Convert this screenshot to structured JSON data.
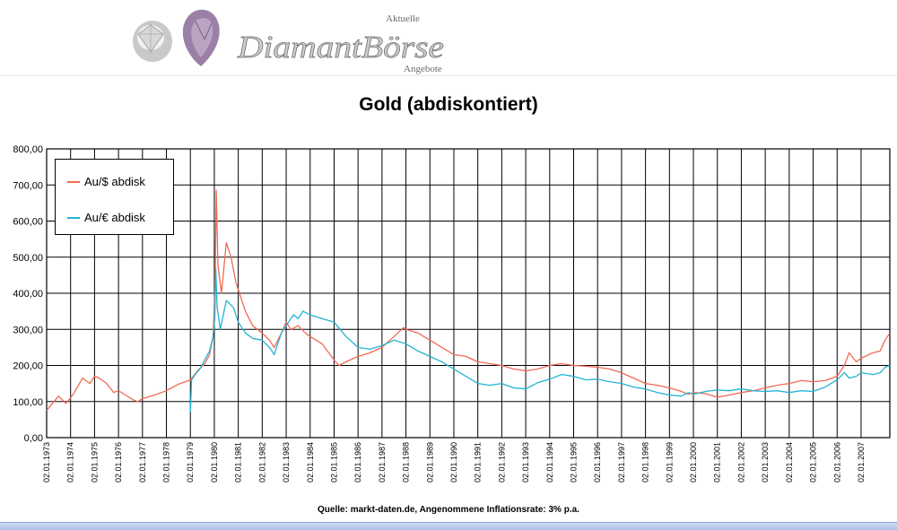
{
  "logo": {
    "brand": "DiamantBörse",
    "top_word": "Aktuelle",
    "bottom_word": "Angebote",
    "gem_icons": [
      "round-diamond-icon",
      "purple-pear-diamond-icon"
    ]
  },
  "colors": {
    "usd_series": "#f06a55",
    "eur_series": "#22b4d4",
    "grid": "#000000"
  },
  "chart_data": {
    "type": "line",
    "title": "Gold (abdiskontiert)",
    "xlabel": "",
    "ylabel": "",
    "ylim": [
      0,
      800
    ],
    "ytick_labels": [
      "0,00",
      "100,00",
      "200,00",
      "300,00",
      "400,00",
      "500,00",
      "600,00",
      "700,00",
      "800,00"
    ],
    "xtick_labels": [
      "02.01.1973",
      "02.01.1974",
      "02.01.1975",
      "02.01.1976",
      "02.01.1977",
      "02.01.1978",
      "02.01.1979",
      "02.01.1980",
      "02.01.1981",
      "02.01.1982",
      "02.01.1983",
      "02.01.1984",
      "02.01.1985",
      "02.01.1986",
      "02.01.1987",
      "02.01.1988",
      "02.01.1989",
      "02.01.1990",
      "02.01.1991",
      "02.01.1992",
      "02.01.1993",
      "02.01.1994",
      "02.01.1995",
      "02.01.1996",
      "02.01.1997",
      "02.01.1998",
      "02.01.1999",
      "02.01.2000",
      "02.01.2001",
      "02.01.2002",
      "02.01.2003",
      "02.01.2004",
      "02.01.2005",
      "02.01.2006",
      "02.01.2007"
    ],
    "xrange": [
      1973.0,
      2008.2
    ],
    "grid": true,
    "legend_position": "top-left",
    "series": [
      {
        "name": "Au/$ abdisk",
        "x": [
          1973.0,
          1973.3,
          1973.5,
          1973.8,
          1974.0,
          1974.2,
          1974.5,
          1974.8,
          1975.0,
          1975.2,
          1975.5,
          1975.8,
          1976.0,
          1976.3,
          1976.6,
          1976.8,
          1977.0,
          1977.5,
          1978.0,
          1978.5,
          1979.0,
          1979.3,
          1979.6,
          1979.8,
          1979.95,
          1980.03,
          1980.08,
          1980.15,
          1980.3,
          1980.5,
          1980.7,
          1980.9,
          1981.0,
          1981.3,
          1981.6,
          1982.0,
          1982.3,
          1982.5,
          1982.8,
          1983.0,
          1983.2,
          1983.5,
          1983.8,
          1984.0,
          1984.5,
          1985.0,
          1985.2,
          1985.5,
          1986.0,
          1986.5,
          1987.0,
          1987.5,
          1987.9,
          1988.0,
          1988.5,
          1989.0,
          1989.5,
          1990.0,
          1990.5,
          1991.0,
          1991.5,
          1992.0,
          1992.5,
          1993.0,
          1993.5,
          1994.0,
          1994.5,
          1995.0,
          1995.5,
          1996.0,
          1996.5,
          1997.0,
          1997.5,
          1998.0,
          1998.5,
          1999.0,
          1999.5,
          1999.8,
          2000.0,
          2000.5,
          2001.0,
          2001.5,
          2002.0,
          2002.5,
          2003.0,
          2003.5,
          2004.0,
          2004.5,
          2005.0,
          2005.5,
          2006.0,
          2006.3,
          2006.5,
          2006.8,
          2007.0,
          2007.5,
          2007.8,
          2008.0,
          2008.2
        ],
        "values": [
          75,
          100,
          115,
          95,
          110,
          130,
          165,
          150,
          170,
          165,
          150,
          125,
          130,
          118,
          105,
          100,
          108,
          118,
          130,
          148,
          160,
          185,
          205,
          230,
          280,
          420,
          685,
          480,
          400,
          540,
          500,
          430,
          410,
          350,
          310,
          290,
          270,
          250,
          290,
          320,
          300,
          310,
          290,
          280,
          260,
          215,
          200,
          210,
          225,
          235,
          250,
          280,
          305,
          300,
          290,
          270,
          250,
          230,
          225,
          210,
          205,
          200,
          190,
          185,
          190,
          200,
          205,
          200,
          198,
          195,
          190,
          180,
          165,
          150,
          145,
          138,
          128,
          120,
          125,
          122,
          112,
          118,
          125,
          130,
          138,
          145,
          150,
          158,
          155,
          158,
          170,
          200,
          235,
          210,
          220,
          235,
          240,
          270,
          290
        ]
      },
      {
        "name": "Au/€ abdisk",
        "x": [
          1979.0,
          1979.05,
          1979.2,
          1979.4,
          1979.6,
          1979.8,
          1979.95,
          1980.02,
          1980.06,
          1980.12,
          1980.25,
          1980.5,
          1980.8,
          1981.0,
          1981.3,
          1981.6,
          1982.0,
          1982.3,
          1982.5,
          1982.8,
          1983.0,
          1983.3,
          1983.5,
          1983.7,
          1984.0,
          1984.5,
          1985.0,
          1985.5,
          1986.0,
          1986.5,
          1987.0,
          1987.5,
          1988.0,
          1988.5,
          1989.0,
          1989.5,
          1990.0,
          1990.5,
          1991.0,
          1991.5,
          1992.0,
          1992.5,
          1993.0,
          1993.5,
          1994.0,
          1994.5,
          1995.0,
          1995.5,
          1996.0,
          1996.5,
          1997.0,
          1997.5,
          1998.0,
          1998.5,
          1999.0,
          1999.5,
          1999.8,
          2000.0,
          2000.5,
          2001.0,
          2001.5,
          2002.0,
          2002.5,
          2003.0,
          2003.5,
          2004.0,
          2004.5,
          2005.0,
          2005.5,
          2006.0,
          2006.3,
          2006.5,
          2006.8,
          2007.0,
          2007.5,
          2007.8,
          2008.0,
          2008.2
        ],
        "values": [
          70,
          160,
          175,
          190,
          215,
          240,
          280,
          330,
          470,
          360,
          300,
          380,
          360,
          320,
          290,
          275,
          270,
          250,
          230,
          290,
          310,
          340,
          330,
          350,
          340,
          330,
          320,
          280,
          250,
          245,
          255,
          270,
          260,
          240,
          225,
          210,
          190,
          170,
          150,
          145,
          150,
          138,
          135,
          152,
          162,
          175,
          170,
          160,
          162,
          155,
          150,
          140,
          135,
          125,
          118,
          115,
          125,
          120,
          128,
          132,
          130,
          135,
          130,
          128,
          130,
          125,
          130,
          128,
          140,
          160,
          180,
          165,
          170,
          180,
          175,
          180,
          195,
          200
        ]
      }
    ]
  },
  "source_note": "Quelle: markt-daten.de, Angenommene Inflationsrate: 3% p.a."
}
